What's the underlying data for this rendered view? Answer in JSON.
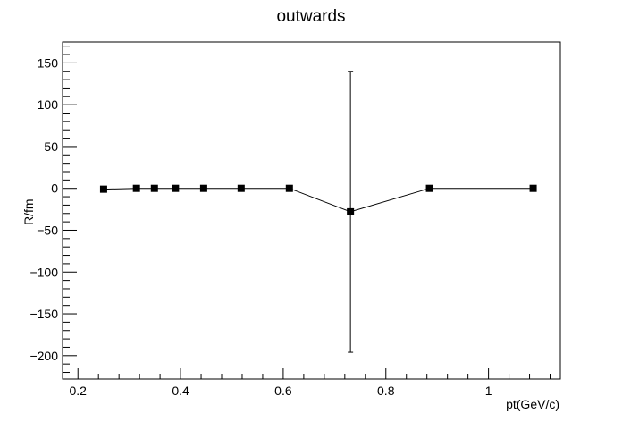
{
  "chart_data": {
    "type": "line",
    "title": "outwards",
    "xlabel": "pt(GeV/c)",
    "ylabel": "R/fm",
    "xlim": [
      0.17,
      1.14
    ],
    "ylim": [
      -228,
      175
    ],
    "x_ticks": [
      0.2,
      0.4,
      0.6,
      0.8,
      1.0
    ],
    "x_tick_labels": [
      "0.2",
      "0.4",
      "0.6",
      "0.8",
      "1"
    ],
    "y_ticks": [
      -200,
      -150,
      -100,
      -50,
      0,
      50,
      100,
      150
    ],
    "y_tick_labels": [
      "−200",
      "−150",
      "−100",
      "−50",
      "0",
      "50",
      "100",
      "150"
    ],
    "grid": false,
    "series": [
      {
        "marker": "square",
        "color": "#000000",
        "x": [
          0.25,
          0.314,
          0.349,
          0.39,
          0.445,
          0.518,
          0.612,
          0.731,
          0.885,
          1.087
        ],
        "y": [
          -1.0,
          0.0,
          0.0,
          0.0,
          0.0,
          0.0,
          0.0,
          -28.0,
          0.0,
          0.0
        ],
        "yerr": [
          0,
          0,
          0,
          0,
          0,
          0,
          0,
          168,
          0,
          0
        ]
      }
    ]
  }
}
